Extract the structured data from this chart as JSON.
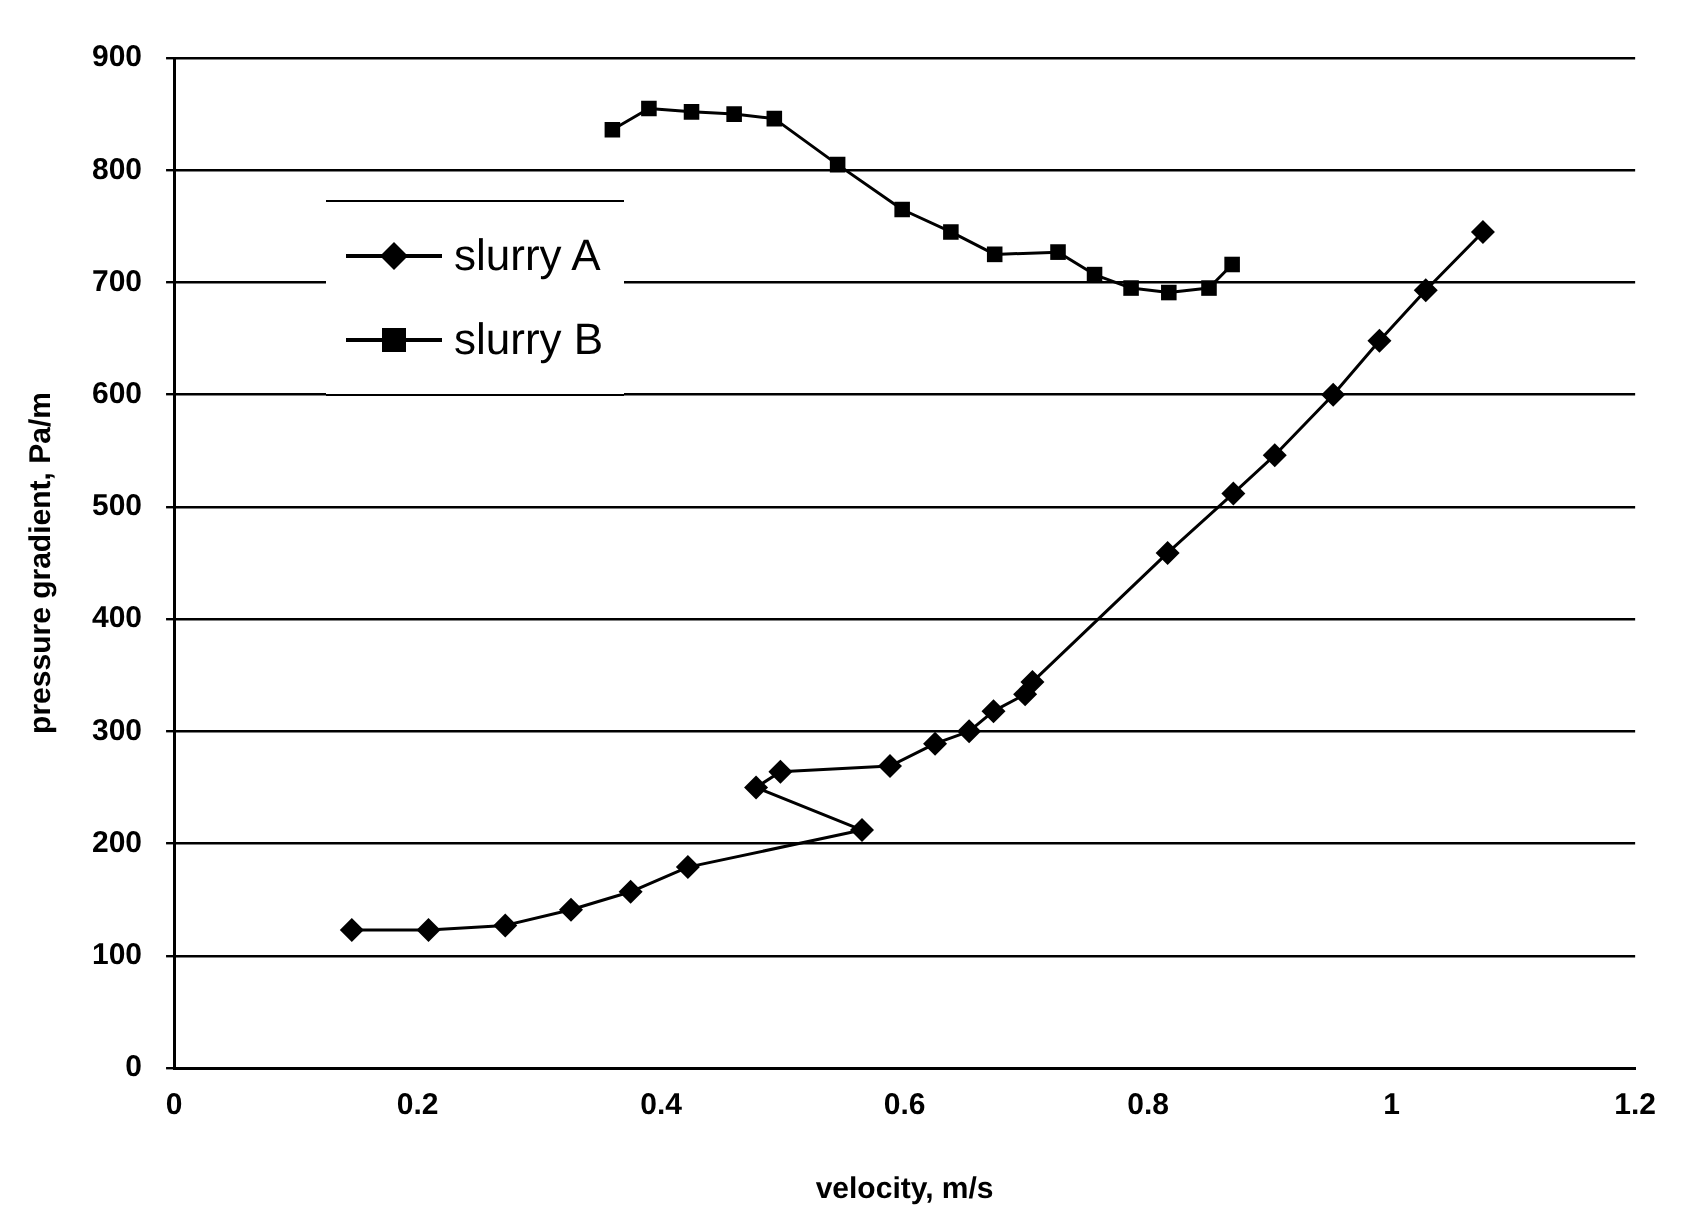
{
  "chart_data": {
    "type": "line",
    "xlabel": "velocity, m/s",
    "ylabel": "pressure gradient, Pa/m",
    "xlim": [
      0,
      1.2
    ],
    "xticks": [
      0,
      0.2,
      0.4,
      0.6,
      0.8,
      1,
      1.2
    ],
    "ylim": [
      0,
      900
    ],
    "yticks": [
      0,
      100,
      200,
      300,
      400,
      500,
      600,
      700,
      800,
      900
    ],
    "grid": "y",
    "legend": "top left",
    "line_style": "solid",
    "series": [
      {
        "name": "slurry A",
        "color": "#000000",
        "marker": "diamond",
        "x": [
          0.146,
          0.209,
          0.272,
          0.326,
          0.375,
          0.422,
          0.565,
          0.478,
          0.498,
          0.588,
          0.625,
          0.653,
          0.673,
          0.699,
          0.705,
          0.816,
          0.87,
          0.904,
          0.952,
          0.99,
          1.028,
          1.075
        ],
        "values": [
          123,
          123,
          127,
          141,
          157,
          179,
          212,
          250,
          264,
          269,
          289,
          300,
          318,
          333,
          344,
          459,
          512,
          546,
          600,
          648,
          693,
          745
        ]
      },
      {
        "name": "slurry B",
        "color": "#000000",
        "marker": "square",
        "x": [
          0.36,
          0.39,
          0.425,
          0.46,
          0.493,
          0.545,
          0.598,
          0.638,
          0.674,
          0.726,
          0.756,
          0.786,
          0.817,
          0.85,
          0.869
        ],
        "values": [
          836,
          855,
          852,
          850,
          846,
          805,
          765,
          745,
          725,
          727,
          707,
          695,
          691,
          695,
          716
        ]
      }
    ]
  }
}
